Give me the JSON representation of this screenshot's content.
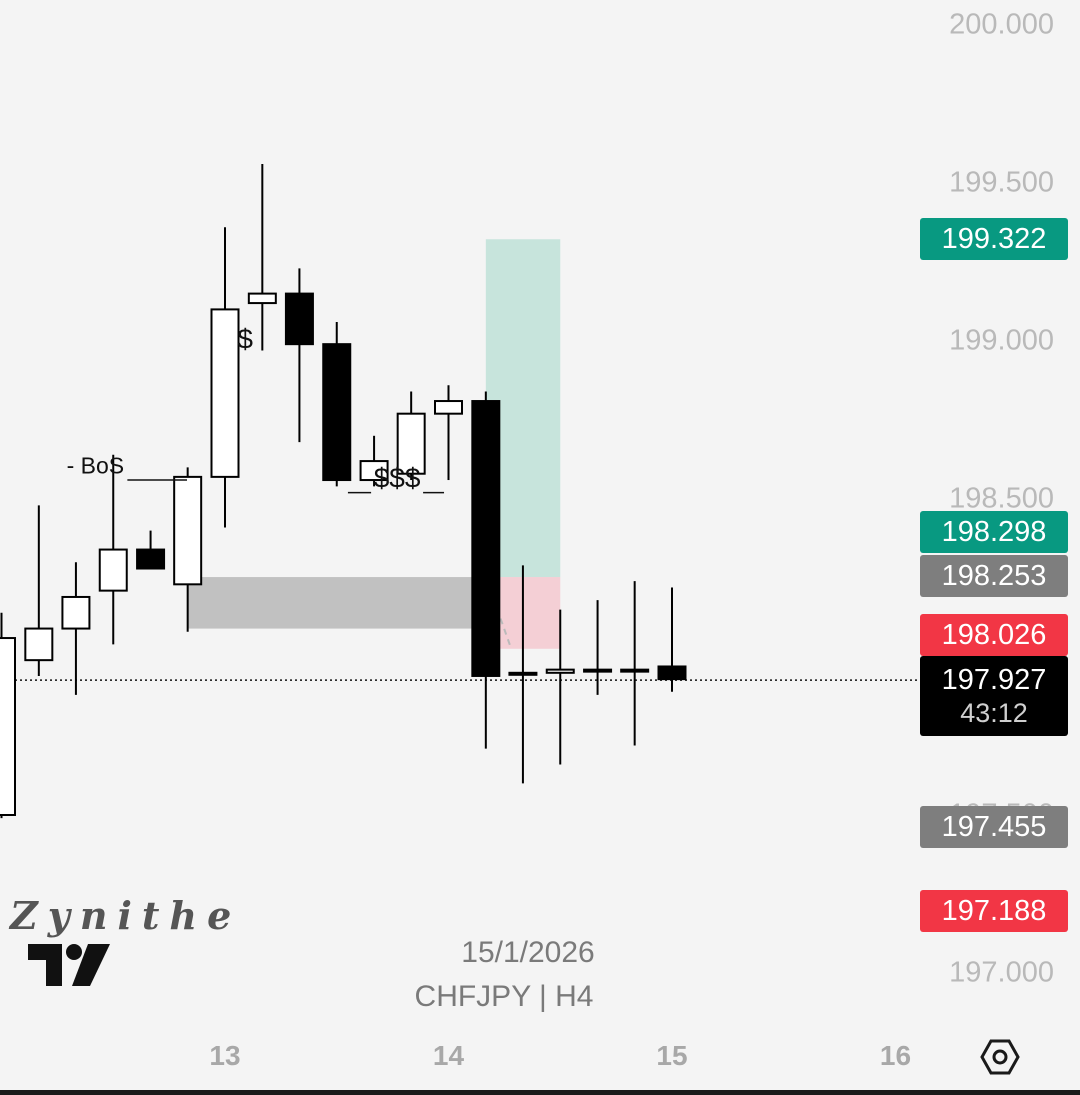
{
  "chart_data": {
    "type": "candlestick",
    "symbol": "CHFJPY",
    "timeframe": "H4",
    "price_axis": {
      "range": [
        196.9,
        200.08
      ],
      "ticks": [
        "200.000",
        "199.500",
        "199.000",
        "198.500",
        "197.500",
        "197.000"
      ]
    },
    "time_axis": {
      "range": [
        12.0,
        16.2
      ],
      "ticks": [
        {
          "label": "13",
          "day": 13
        },
        {
          "label": "14",
          "day": 14
        },
        {
          "label": "15",
          "day": 15
        },
        {
          "label": "16",
          "day": 16
        }
      ]
    },
    "candles": [
      {
        "t": 12.0,
        "o": 197.5,
        "h": 198.14,
        "l": 197.49,
        "c": 198.06
      },
      {
        "t": 12.167,
        "o": 197.99,
        "h": 198.48,
        "l": 197.94,
        "c": 198.09
      },
      {
        "t": 12.333,
        "o": 198.09,
        "h": 198.3,
        "l": 197.88,
        "c": 198.19
      },
      {
        "t": 12.5,
        "o": 198.21,
        "h": 198.64,
        "l": 198.04,
        "c": 198.34
      },
      {
        "t": 12.667,
        "o": 198.34,
        "h": 198.4,
        "l": 198.29,
        "c": 198.28
      },
      {
        "t": 12.833,
        "o": 198.23,
        "h": 198.6,
        "l": 198.08,
        "c": 198.57
      },
      {
        "t": 13.0,
        "o": 198.57,
        "h": 199.36,
        "l": 198.41,
        "c": 199.1
      },
      {
        "t": 13.167,
        "o": 199.12,
        "h": 199.56,
        "l": 198.97,
        "c": 199.15
      },
      {
        "t": 13.333,
        "o": 199.15,
        "h": 199.23,
        "l": 198.68,
        "c": 198.99
      },
      {
        "t": 13.5,
        "o": 198.99,
        "h": 199.06,
        "l": 198.54,
        "c": 198.56
      },
      {
        "t": 13.667,
        "o": 198.56,
        "h": 198.7,
        "l": 198.54,
        "c": 198.62
      },
      {
        "t": 13.833,
        "o": 198.58,
        "h": 198.84,
        "l": 198.56,
        "c": 198.77
      },
      {
        "t": 14.0,
        "o": 198.77,
        "h": 198.86,
        "l": 198.56,
        "c": 198.81
      },
      {
        "t": 14.167,
        "o": 198.81,
        "h": 198.84,
        "l": 197.71,
        "c": 197.94
      },
      {
        "t": 14.333,
        "o": 197.95,
        "h": 198.29,
        "l": 197.6,
        "c": 197.95
      },
      {
        "t": 14.5,
        "o": 197.95,
        "h": 198.15,
        "l": 197.66,
        "c": 197.96
      },
      {
        "t": 14.667,
        "o": 197.96,
        "h": 198.18,
        "l": 197.88,
        "c": 197.96
      },
      {
        "t": 14.833,
        "o": 197.96,
        "h": 198.24,
        "l": 197.72,
        "c": 197.96
      },
      {
        "t": 15.0,
        "o": 197.97,
        "h": 198.22,
        "l": 197.89,
        "c": 197.93
      }
    ],
    "zones": [
      {
        "name": "demand-zone",
        "t_start": 12.833,
        "t_end": 14.167,
        "top": 198.253,
        "bottom": 198.09,
        "color": "#9e9e9e"
      },
      {
        "name": "take-profit-zone",
        "t_start": 14.167,
        "t_end": 14.5,
        "top": 199.322,
        "bottom": 198.253,
        "color": "#a8d8cc"
      },
      {
        "name": "stop-loss-zone",
        "t_start": 14.167,
        "t_end": 14.5,
        "top": 198.253,
        "bottom": 198.026,
        "color": "#f4b6bf"
      }
    ],
    "annotations": [
      {
        "text": "- BoS",
        "t": 12.42,
        "price": 198.6,
        "line_to": 12.83
      },
      {
        "text": "$",
        "t": 13.09,
        "price": 199.0
      },
      {
        "text": "$$$",
        "t": 13.77,
        "price": 198.56,
        "line_from": 13.55,
        "line_to": 13.98
      }
    ],
    "current_price": 197.927
  },
  "badges": {
    "tp": {
      "value": "199.322",
      "color": "#089981",
      "price": 199.322
    },
    "entry_high": {
      "value": "198.298",
      "color": "#089981",
      "price": 198.298
    },
    "entry": {
      "value": "198.253",
      "color": "#7e7e7e",
      "price": 198.253
    },
    "sl": {
      "value": "198.026",
      "color": "#f23645",
      "price": 198.026
    },
    "low_grey": {
      "value": "197.455",
      "color": "#7e7e7e",
      "price": 197.455
    },
    "low_red": {
      "value": "197.188",
      "color": "#f23645",
      "price": 197.188
    }
  },
  "current": {
    "price": "197.927",
    "timer": "43:12"
  },
  "footer": {
    "watermark": "Zynithe",
    "date": "15/1/2026",
    "symbol_line": "CHFJPY | H4"
  }
}
